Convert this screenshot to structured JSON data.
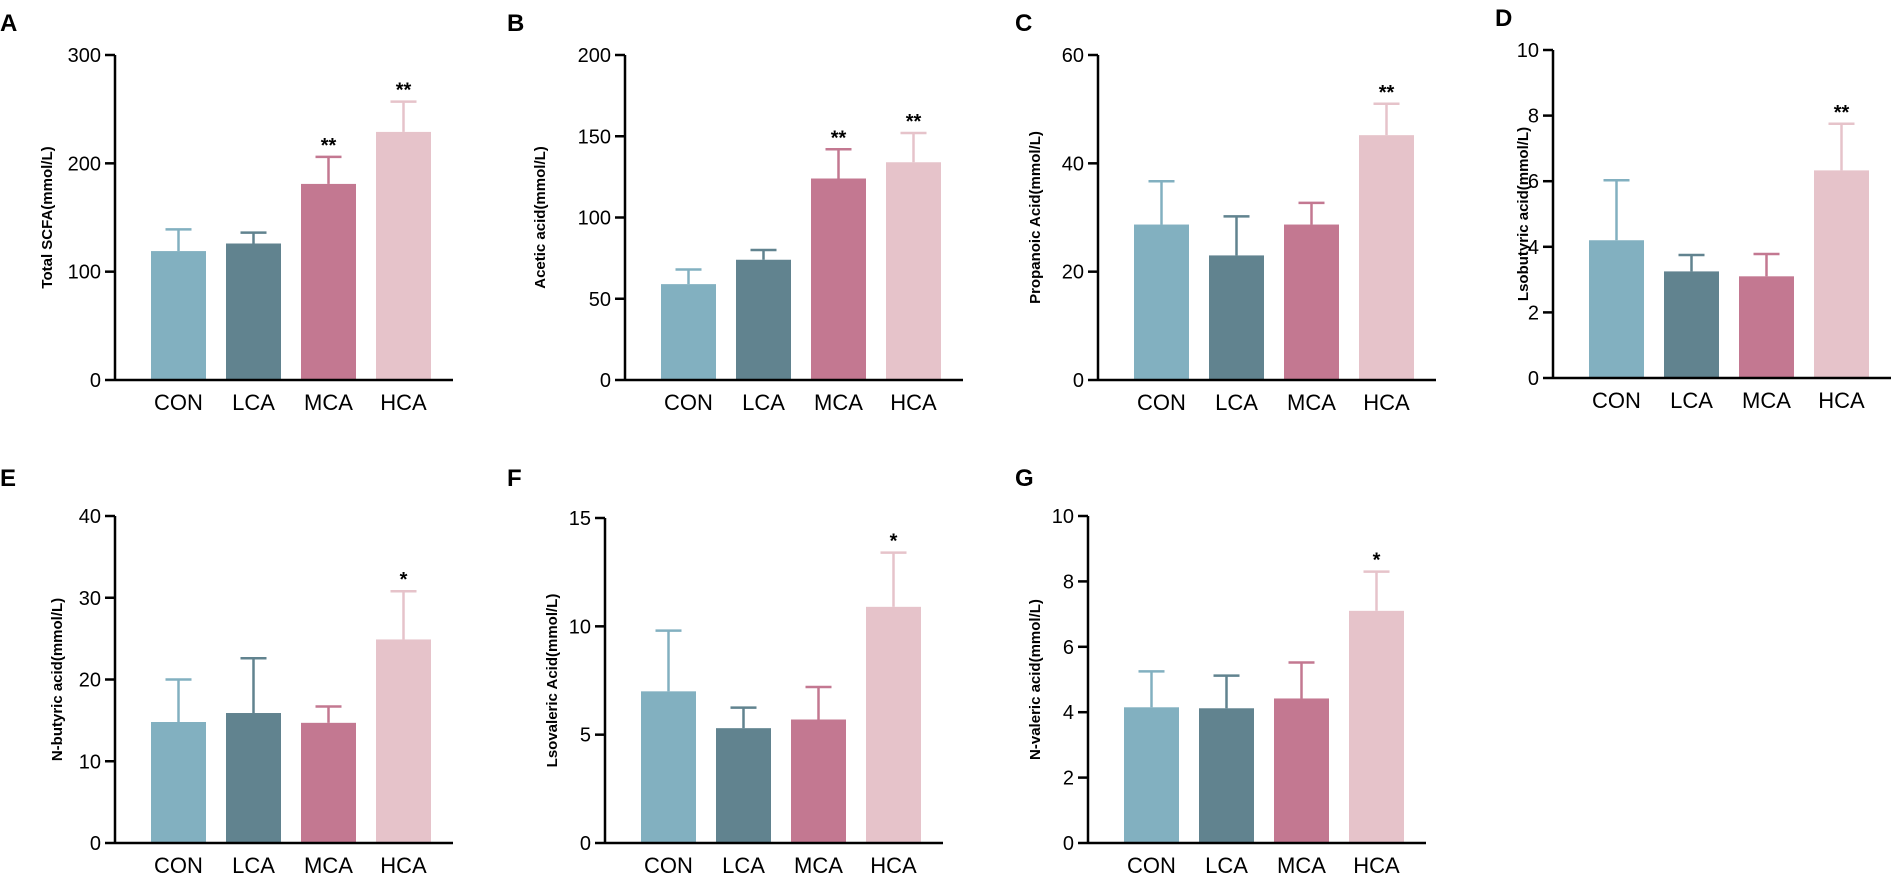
{
  "chart_data": [
    {
      "type": "bar",
      "panel": "A",
      "categories": [
        "CON",
        "LCA",
        "MCA",
        "HCA"
      ],
      "values": [
        119,
        126,
        181,
        229
      ],
      "errors": [
        20,
        10,
        25,
        28
      ],
      "significance": [
        "",
        "",
        "**",
        "**"
      ],
      "ylabel": "Total SCFA(mmol/L)",
      "ylim": [
        0,
        300
      ],
      "yticks": [
        "0",
        "100",
        "200",
        "300"
      ]
    },
    {
      "type": "bar",
      "panel": "B",
      "categories": [
        "CON",
        "LCA",
        "MCA",
        "HCA"
      ],
      "values": [
        59,
        74,
        124,
        134
      ],
      "errors": [
        9,
        6,
        18,
        18
      ],
      "significance": [
        "",
        "",
        "**",
        "**"
      ],
      "ylabel": "Acetic acid(mmol/L)",
      "ylim": [
        0,
        200
      ],
      "yticks": [
        "0",
        "50",
        "100",
        "150",
        "200"
      ]
    },
    {
      "type": "bar",
      "panel": "C",
      "categories": [
        "CON",
        "LCA",
        "MCA",
        "HCA"
      ],
      "values": [
        28.7,
        23,
        28.7,
        45.2
      ],
      "errors": [
        8,
        7.2,
        4,
        5.8
      ],
      "significance": [
        "",
        "",
        "",
        "**"
      ],
      "ylabel": "Propanoic Acid(mmol/L)",
      "ylim": [
        0,
        60
      ],
      "yticks": [
        "0",
        "20",
        "40",
        "60"
      ]
    },
    {
      "type": "bar",
      "panel": "D",
      "categories": [
        "CON",
        "LCA",
        "MCA",
        "HCA"
      ],
      "values": [
        4.2,
        3.25,
        3.1,
        6.33
      ],
      "errors": [
        1.83,
        0.5,
        0.68,
        1.42
      ],
      "significance": [
        "",
        "",
        "",
        "**"
      ],
      "ylabel": "Lsobutyric acid(mmol/L)",
      "ylim": [
        0,
        10
      ],
      "yticks": [
        "0",
        "2",
        "4",
        "6",
        "8",
        "10"
      ]
    },
    {
      "type": "bar",
      "panel": "E",
      "categories": [
        "CON",
        "LCA",
        "MCA",
        "HCA"
      ],
      "values": [
        14.8,
        15.9,
        14.7,
        24.9
      ],
      "errors": [
        5.2,
        6.7,
        2,
        5.9
      ],
      "significance": [
        "",
        "",
        "",
        "*"
      ],
      "ylabel": "N-butyric acid(mmol/L)",
      "ylim": [
        0,
        40
      ],
      "yticks": [
        "0",
        "10",
        "20",
        "30",
        "40"
      ]
    },
    {
      "type": "bar",
      "panel": "F",
      "categories": [
        "CON",
        "LCA",
        "MCA",
        "HCA"
      ],
      "values": [
        7,
        5.3,
        5.7,
        10.9
      ],
      "errors": [
        2.8,
        0.95,
        1.5,
        2.5
      ],
      "significance": [
        "",
        "",
        "",
        "*"
      ],
      "ylabel": "Lsovaleric Acid(mmol/L)",
      "ylim": [
        0,
        15
      ],
      "yticks": [
        "0",
        "5",
        "10",
        "15"
      ]
    },
    {
      "type": "bar",
      "panel": "G",
      "categories": [
        "CON",
        "LCA",
        "MCA",
        "HCA"
      ],
      "values": [
        4.15,
        4.12,
        4.42,
        7.1
      ],
      "errors": [
        1.1,
        1.0,
        1.1,
        1.2
      ],
      "significance": [
        "",
        "",
        "",
        "*"
      ],
      "ylabel": "N-valeric acid(mmol/L)",
      "ylim": [
        0,
        10
      ],
      "yticks": [
        "0",
        "2",
        "4",
        "6",
        "8",
        "10"
      ]
    }
  ],
  "colors": {
    "bars": [
      "#82b0c0",
      "#61838f",
      "#c37891",
      "#e6c3ca"
    ],
    "errorbars": [
      "#82b0c0",
      "#61838f",
      "#c37891",
      "#e6c3ca"
    ],
    "axis": "#000000"
  }
}
